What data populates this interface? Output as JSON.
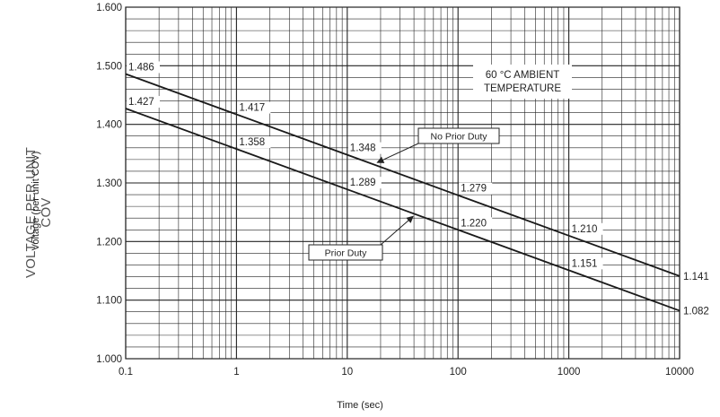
{
  "chart_data": {
    "type": "line",
    "title": "",
    "outer_ylabel": "VOLTAGE PER UNIT COV",
    "ylabel": "Voltage (per unit COV)",
    "xlabel": "Time (sec)",
    "x_scale": "log",
    "xlim": [
      0.1,
      10000
    ],
    "ylim": [
      1.0,
      1.6
    ],
    "grid": true,
    "x_ticks": [
      {
        "value": 0.1,
        "label": "0.1"
      },
      {
        "value": 1,
        "label": "1"
      },
      {
        "value": 10,
        "label": "10"
      },
      {
        "value": 100,
        "label": "100"
      },
      {
        "value": 1000,
        "label": "1000"
      },
      {
        "value": 10000,
        "label": "10000"
      }
    ],
    "y_ticks": [
      {
        "value": 1.0,
        "label": "1.000"
      },
      {
        "value": 1.1,
        "label": "1.100"
      },
      {
        "value": 1.2,
        "label": "1.200"
      },
      {
        "value": 1.3,
        "label": "1.300"
      },
      {
        "value": 1.4,
        "label": "1.400"
      },
      {
        "value": 1.5,
        "label": "1.500"
      },
      {
        "value": 1.6,
        "label": "1.600"
      }
    ],
    "series": [
      {
        "name": "No Prior Duty",
        "x": [
          0.1,
          1,
          10,
          100,
          1000,
          10000
        ],
        "y": [
          1.486,
          1.417,
          1.348,
          1.279,
          1.21,
          1.141
        ],
        "point_labels": [
          "1.486",
          "1.417",
          "1.348",
          "1.279",
          "1.210",
          "1.141"
        ],
        "color": "#1a1a1a"
      },
      {
        "name": "Prior Duty",
        "x": [
          0.1,
          1,
          10,
          100,
          1000,
          10000
        ],
        "y": [
          1.427,
          1.358,
          1.289,
          1.22,
          1.151,
          1.082
        ],
        "point_labels": [
          "1.427",
          "1.358",
          "1.289",
          "1.220",
          "1.151",
          "1.082"
        ],
        "color": "#1a1a1a"
      }
    ],
    "annotations": [
      {
        "text_lines": [
          "60 °C AMBIENT",
          "TEMPERATURE"
        ]
      }
    ],
    "callouts": [
      {
        "text": "No Prior Duty",
        "series": 0,
        "arrow_to_x": 18
      },
      {
        "text": "Prior Duty",
        "series": 1,
        "arrow_to_x": 40
      }
    ]
  }
}
